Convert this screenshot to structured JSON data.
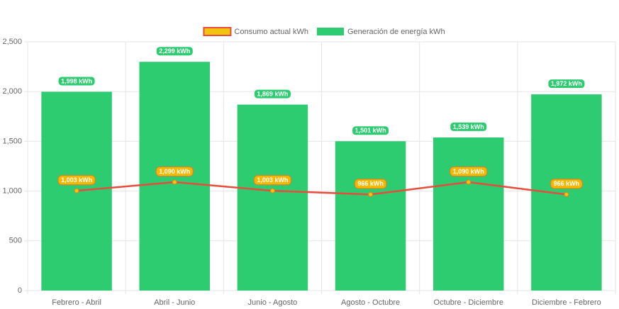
{
  "chart_data": {
    "type": "bar",
    "categories": [
      "Febrero - Abril",
      "Abril - Junio",
      "Junio - Agosto",
      "Agosto - Octubre",
      "Octubre - Diciembre",
      "Diciembre - Febrero"
    ],
    "series": [
      {
        "name": "Consumo actual kWh",
        "type": "line",
        "color": "#e74c3c",
        "point_color": "#f1c40f",
        "values": [
          1003,
          1090,
          1003,
          966,
          1090,
          966
        ],
        "value_labels": [
          "1,003 kWh",
          "1,090 kWh",
          "1,003 kWh",
          "966 kWh",
          "1,090 kWh",
          "966 kWh"
        ]
      },
      {
        "name": "Generación de energía kWh",
        "type": "bar",
        "color": "#2ecc71",
        "values": [
          1998,
          2299,
          1869,
          1501,
          1539,
          1972
        ],
        "value_labels": [
          "1,998 kWh",
          "2,299 kWh",
          "1,869 kWh",
          "1,501 kWh",
          "1,539 kWh",
          "1,972 kWh"
        ]
      }
    ],
    "ylim": [
      0,
      2500
    ],
    "yticks": [
      0,
      500,
      {
        "value": 1000,
        "label": "1,000"
      },
      {
        "value": 1500,
        "label": "1,500"
      },
      {
        "value": 2000,
        "label": "2,000"
      },
      {
        "value": 2500,
        "label": "2,500"
      }
    ],
    "grid": true,
    "legend": "top"
  }
}
